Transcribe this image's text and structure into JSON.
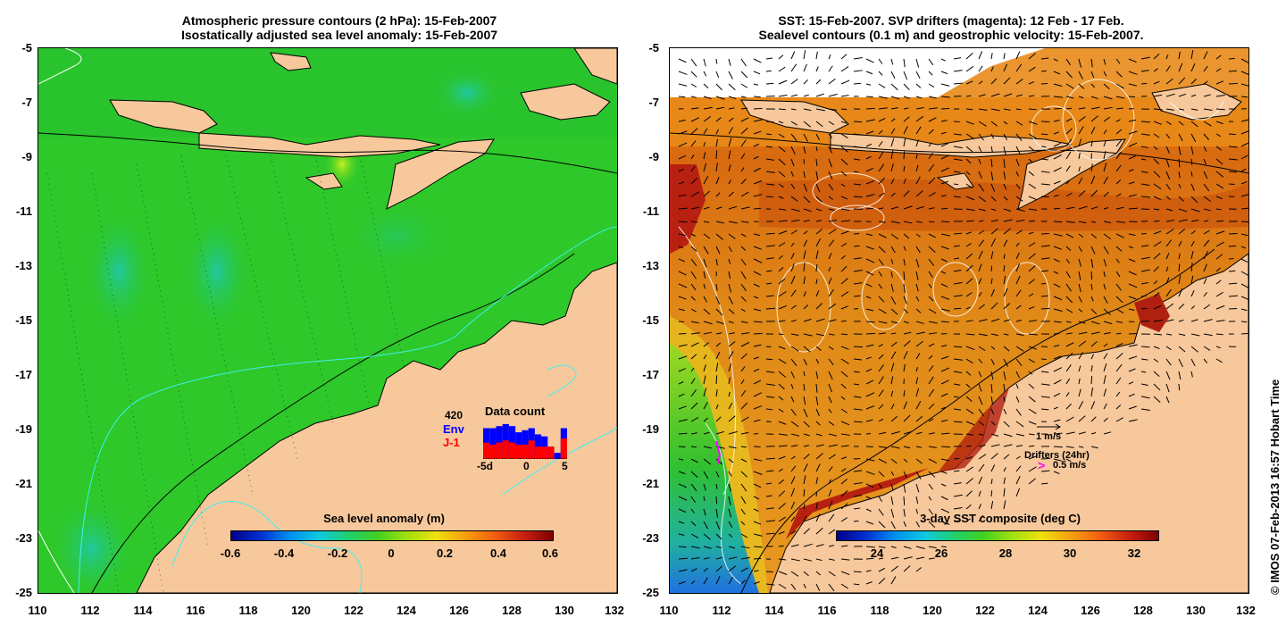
{
  "left_panel": {
    "title_line1": "Atmospheric pressure contours (2 hPa): 15-Feb-2007",
    "title_line2": "Isostatically adjusted sea level anomaly: 15-Feb-2007",
    "y_ticks": [
      "-5",
      "-7",
      "-9",
      "-11",
      "-13",
      "-15",
      "-17",
      "-19",
      "-21",
      "-23",
      "-25"
    ],
    "x_ticks": [
      "110",
      "112",
      "114",
      "116",
      "118",
      "120",
      "122",
      "124",
      "126",
      "128",
      "130",
      "132"
    ],
    "colorbar_label": "Sea level anomaly (m)",
    "colorbar_ticks": [
      "-0.6",
      "-0.4",
      "-0.2",
      "0",
      "0.2",
      "0.4",
      "0.6"
    ],
    "inset": {
      "title": "Data count",
      "max_count": "420",
      "series1": "Env",
      "series2": "J-1",
      "x_ticks": [
        "-5d",
        "0",
        "5"
      ],
      "env_values": [
        0.75,
        0.75,
        0.8,
        0.85,
        0.8,
        0.65,
        0.7,
        0.75,
        0.6,
        0.55,
        0.3,
        0.15,
        0.75
      ],
      "j1_values": [
        0.4,
        0.35,
        0.4,
        0.45,
        0.4,
        0.35,
        0.35,
        0.45,
        0.3,
        0.3,
        0.3,
        0.0,
        0.5
      ],
      "colors": {
        "env": "#0000ff",
        "j1": "#ff0000"
      }
    }
  },
  "right_panel": {
    "title_line1": "SST: 15-Feb-2007. SVP drifters (magenta): 12 Feb - 17 Feb.",
    "title_line2": "Sealevel contours (0.1 m) and geostrophic velocity: 15-Feb-2007.",
    "y_ticks": [
      "-5",
      "-7",
      "-9",
      "-11",
      "-13",
      "-15",
      "-17",
      "-19",
      "-21",
      "-23",
      "-25"
    ],
    "x_ticks": [
      "110",
      "112",
      "114",
      "116",
      "118",
      "120",
      "122",
      "124",
      "126",
      "128",
      "130",
      "132"
    ],
    "colorbar_label": "3-day SST composite (deg C)",
    "colorbar_ticks": [
      "24",
      "26",
      "28",
      "30",
      "32"
    ],
    "velocity_scale": "1 m/s",
    "drifters_label": "Drifters (24hr)",
    "drifter_scale": "0.5 m/s"
  },
  "credit": "© IMOS 07-Feb-2013 16:57 Hobart Time",
  "colors": {
    "land": "#f7c89b",
    "ocean_green": "#2dc826",
    "sst_warm": "#e07a12",
    "sst_hot": "#b82010",
    "drifter": "#ff00ff"
  }
}
